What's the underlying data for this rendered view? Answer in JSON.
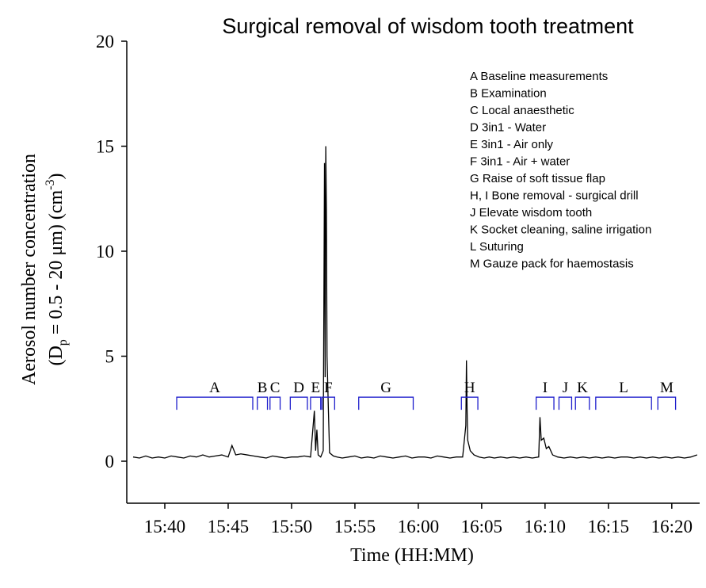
{
  "chart_data": {
    "type": "line",
    "title": "Surgical removal of wisdom tooth treatment",
    "xlabel": "Time (HH:MM)",
    "ylabel": {
      "line1": "Aerosol number concentration",
      "line2": [
        "(D",
        "p",
        " = 0.5 - 20 μm) (cm",
        "-3",
        ")"
      ]
    },
    "xlim": [
      937,
      982.2
    ],
    "ylim": [
      -2,
      20
    ],
    "xticks": [
      {
        "value": 940,
        "label": "15:40"
      },
      {
        "value": 945,
        "label": "15:45"
      },
      {
        "value": 950,
        "label": "15:50"
      },
      {
        "value": 955,
        "label": "15:55"
      },
      {
        "value": 960,
        "label": "16:00"
      },
      {
        "value": 965,
        "label": "16:05"
      },
      {
        "value": 970,
        "label": "16:10"
      },
      {
        "value": 975,
        "label": "16:15"
      },
      {
        "value": 980,
        "label": "16:20"
      }
    ],
    "yticks": [
      0,
      5,
      10,
      15,
      20
    ],
    "series": [
      {
        "color": "#000000",
        "x": [
          937.5,
          938,
          938.5,
          939,
          939.5,
          940,
          940.5,
          941,
          941.5,
          942,
          942.5,
          943,
          943.5,
          944,
          944.5,
          945,
          945.3,
          945.6,
          946,
          946.5,
          947,
          947.5,
          948,
          948.5,
          949,
          949.5,
          950,
          950.5,
          951,
          951.5,
          951.8,
          951.9,
          952,
          952.1,
          952.3,
          952.5,
          952.6,
          952.65,
          952.7,
          952.75,
          952.8,
          952.9,
          953,
          953.3,
          953.6,
          954,
          954.5,
          955,
          955.5,
          956,
          956.5,
          957,
          957.5,
          958,
          958.5,
          959,
          959.5,
          960,
          960.5,
          961,
          961.5,
          962,
          962.5,
          963,
          963.5,
          963.75,
          963.8,
          963.85,
          963.9,
          964.1,
          964.4,
          964.8,
          965.2,
          965.6,
          966,
          966.5,
          967,
          967.5,
          968,
          968.5,
          969,
          969.5,
          969.6,
          969.7,
          969.9,
          970.1,
          970.3,
          970.6,
          971,
          971.5,
          972,
          972.5,
          973,
          973.5,
          974,
          974.5,
          975,
          975.5,
          976,
          976.5,
          977,
          977.5,
          978,
          978.5,
          979,
          979.5,
          980,
          980.5,
          981,
          981.5,
          982
        ],
        "values": [
          0.2,
          0.15,
          0.25,
          0.15,
          0.2,
          0.15,
          0.25,
          0.2,
          0.15,
          0.25,
          0.2,
          0.3,
          0.2,
          0.25,
          0.3,
          0.2,
          0.75,
          0.3,
          0.35,
          0.3,
          0.25,
          0.2,
          0.15,
          0.25,
          0.2,
          0.15,
          0.2,
          0.2,
          0.25,
          0.2,
          2.4,
          0.5,
          1.5,
          0.3,
          0.2,
          0.5,
          14.2,
          4,
          15,
          12,
          5,
          2.6,
          0.4,
          0.25,
          0.2,
          0.15,
          0.2,
          0.25,
          0.15,
          0.2,
          0.15,
          0.25,
          0.2,
          0.15,
          0.2,
          0.25,
          0.15,
          0.2,
          0.2,
          0.15,
          0.25,
          0.2,
          0.15,
          0.2,
          0.2,
          1.7,
          4.8,
          2.5,
          1,
          0.5,
          0.3,
          0.2,
          0.15,
          0.2,
          0.15,
          0.2,
          0.15,
          0.2,
          0.15,
          0.2,
          0.15,
          0.2,
          2.1,
          1,
          1.1,
          0.6,
          0.7,
          0.3,
          0.2,
          0.15,
          0.2,
          0.15,
          0.2,
          0.15,
          0.2,
          0.15,
          0.2,
          0.15,
          0.2,
          0.2,
          0.15,
          0.2,
          0.15,
          0.2,
          0.15,
          0.2,
          0.15,
          0.2,
          0.15,
          0.2,
          0.3
        ]
      }
    ],
    "phases": [
      {
        "label": "A",
        "start": 940.94,
        "end": 946.94
      },
      {
        "label": "B",
        "start": 947.3,
        "end": 948.1
      },
      {
        "label": "C",
        "start": 948.3,
        "end": 949.1
      },
      {
        "label": "D",
        "start": 949.9,
        "end": 951.25
      },
      {
        "label": "E",
        "start": 951.5,
        "end": 952.3
      },
      {
        "label": "F",
        "start": 952.4,
        "end": 953.4
      },
      {
        "label": "G",
        "start": 955.3,
        "end": 959.6
      },
      {
        "label": "H",
        "start": 963.4,
        "end": 964.7
      },
      {
        "label": "I",
        "start": 969.3,
        "end": 970.7
      },
      {
        "label": "J",
        "start": 971.1,
        "end": 972.1
      },
      {
        "label": "K",
        "start": 972.4,
        "end": 973.5
      },
      {
        "label": "L",
        "start": 974,
        "end": 978.4
      },
      {
        "label": "M",
        "start": 978.9,
        "end": 980.3
      }
    ],
    "phase_level": 3.05,
    "phase_color": "#1f1fcc",
    "annotations": [
      "A Baseline measurements",
      "B Examination",
      "C Local anaesthetic",
      "D 3in1 - Water",
      "E 3in1 - Air only",
      "F 3in1 - Air + water",
      "G Raise of soft tissue flap",
      "H, I Bone removal - surgical drill",
      "J Elevate wisdom tooth",
      "K Socket cleaning, saline irrigation",
      "L Suturing",
      "M Gauze pack for haemostasis"
    ]
  }
}
